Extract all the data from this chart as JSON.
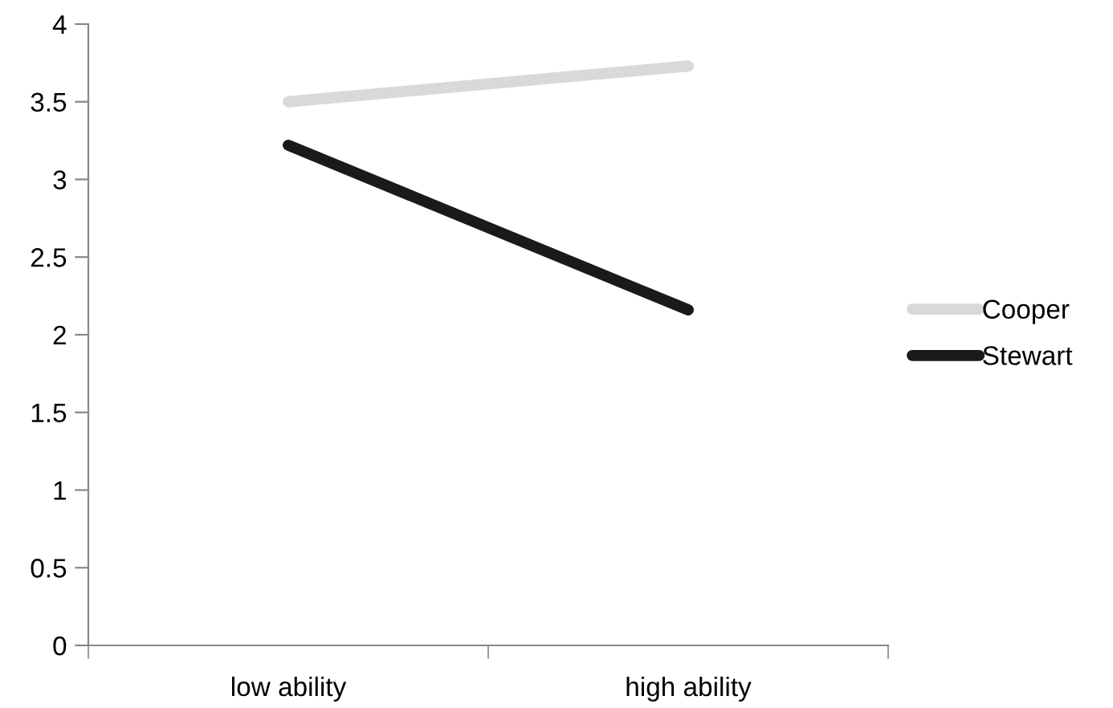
{
  "chart_data": {
    "type": "line",
    "categories": [
      "low ability",
      "high ability"
    ],
    "series": [
      {
        "name": "Cooper",
        "color": "#d9d9d9",
        "values": [
          3.5,
          3.73
        ]
      },
      {
        "name": "Stewart",
        "color": "#1a1a1a",
        "values": [
          3.22,
          2.16
        ]
      }
    ],
    "ylim": [
      0,
      4
    ],
    "yticks": [
      0,
      0.5,
      1,
      1.5,
      2,
      2.5,
      3,
      3.5,
      4
    ],
    "grid": false,
    "legend": "right",
    "marker": "none",
    "line_style": "solid"
  }
}
